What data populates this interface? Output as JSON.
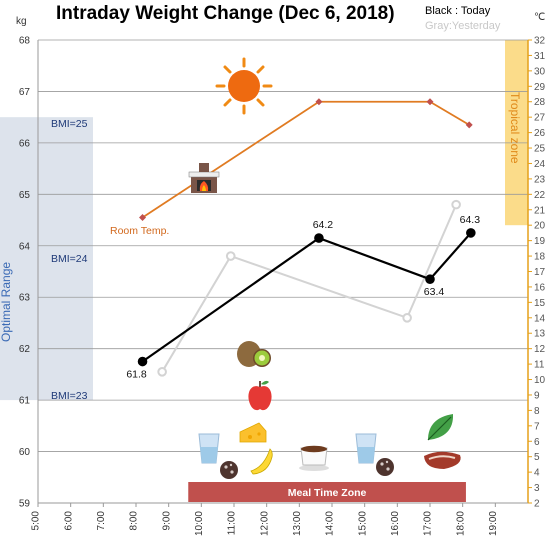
{
  "chart_data": {
    "type": "line",
    "title": "Intraday Weight Change (Dec 6, 2018)",
    "legend": {
      "today": "Black : Today",
      "yesterday": "Gray:Yesterday",
      "placement": "top-right"
    },
    "y_unit": "kg",
    "y2_unit": "℃",
    "ylim": [
      59,
      68
    ],
    "y2lim": [
      2,
      32
    ],
    "xlim": [
      5,
      20
    ],
    "x_ticks": [
      "5:00",
      "6:00",
      "7:00",
      "8:00",
      "9:00",
      "10:00",
      "11:00",
      "12:00",
      "13:00",
      "14:00",
      "15:00",
      "16:00",
      "17:00",
      "18:00",
      "19:00"
    ],
    "y_ticks": [
      "59",
      "60",
      "61",
      "62",
      "63",
      "64",
      "65",
      "66",
      "67",
      "68"
    ],
    "y2_ticks": [
      "2",
      "3",
      "4",
      "5",
      "6",
      "7",
      "8",
      "9",
      "10",
      "11",
      "12",
      "13",
      "14",
      "15",
      "16",
      "17",
      "18",
      "19",
      "20",
      "21",
      "22",
      "23",
      "24",
      "25",
      "26",
      "27",
      "28",
      "29",
      "30",
      "31",
      "32"
    ],
    "grid": true,
    "series": [
      {
        "name": "Today",
        "color": "#000000",
        "points": [
          {
            "x": 8.2,
            "y": 61.75,
            "label": "61.8"
          },
          {
            "x": 13.6,
            "y": 64.15,
            "label": "64.2"
          },
          {
            "x": 17.0,
            "y": 63.35,
            "label": "63.4"
          },
          {
            "x": 18.25,
            "y": 64.25,
            "label": "64.3"
          }
        ]
      },
      {
        "name": "Yesterday",
        "color": "#d3d3d3",
        "points": [
          {
            "x": 8.8,
            "y": 61.55
          },
          {
            "x": 10.9,
            "y": 63.8
          },
          {
            "x": 16.3,
            "y": 62.6
          },
          {
            "x": 17.8,
            "y": 64.8
          }
        ]
      },
      {
        "name": "Room Temp.",
        "axis": "y2",
        "color": "#e07b22",
        "points": [
          {
            "x": 8.2,
            "y": 20.5
          },
          {
            "x": 13.6,
            "y": 28.0
          },
          {
            "x": 17.0,
            "y": 28.0
          },
          {
            "x": 18.2,
            "y": 26.5
          }
        ]
      }
    ],
    "annotations": {
      "room_temp_label": "Room Temp.",
      "optimal_range": "Optimal Range",
      "bmi_25": "BMI=25",
      "bmi_24": "BMI=24",
      "bmi_23": "BMI=23",
      "tropical_zone": "Tropical zone",
      "meal_time_zone": "Meal Time Zone"
    },
    "regions": {
      "optimal_range": {
        "y_from": 61,
        "y_to": 66.5
      },
      "tropical_zone": {
        "y2_from": 20,
        "y2_to": 32
      },
      "meal_time_zone": {
        "x_from": 9.6,
        "x_to": 18.1
      }
    },
    "colors": {
      "today": "#000000",
      "yesterday": "#d3d3d3",
      "room_temp": "#e07b22",
      "optimal_band": "#dde3ec",
      "tropical_band": "#fbdc8a",
      "meal_bar": "#c0504d",
      "right_axis": "#e5a11a"
    },
    "icons": [
      "sun-icon",
      "fireplace-icon",
      "kiwi-icon",
      "apple-icon",
      "cheese-icon",
      "banana-icon",
      "water-glass-icon",
      "cookies-icon",
      "coffee-icon",
      "leaf-icon",
      "steak-icon"
    ]
  }
}
